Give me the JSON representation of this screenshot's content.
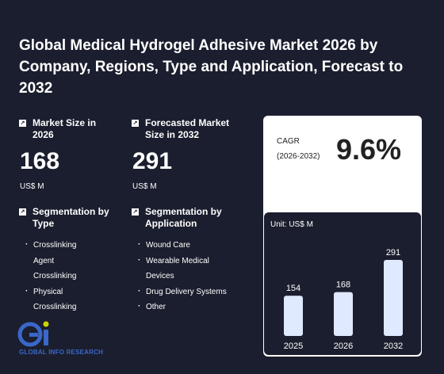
{
  "title": "Global Medical Hydrogel Adhesive Market 2026 by Company, Regions, Type and Application, Forecast to 2032",
  "market_size": {
    "label": "Market Size in 2026",
    "value": "168",
    "unit": "US$ M"
  },
  "forecast": {
    "label": "Forecasted Market Size in 2032",
    "value": "291",
    "unit": "US$ M"
  },
  "cagr": {
    "label": "CAGR",
    "period": "(2026-2032)",
    "value": "9.6%"
  },
  "seg_type": {
    "label": "Segmentation by Type",
    "items": [
      "Crosslinking Agent Crosslinking",
      "Physical Crosslinking"
    ]
  },
  "seg_app": {
    "label": "Segmentation by Application",
    "items": [
      "Wound Care",
      "Wearable Medical Devices",
      "Drug Delivery Systems",
      "Other"
    ]
  },
  "logo": {
    "text": "GLOBAL INFO RESEARCH"
  },
  "colors": {
    "background": "#1b1e2e",
    "bar": "#dfe9ff",
    "logo": "#3a67c9"
  },
  "chart_data": {
    "type": "bar",
    "unit_label": "Unit: US$ M",
    "categories": [
      "2025",
      "2026",
      "2032"
    ],
    "values": [
      154,
      168,
      291
    ],
    "ylim": [
      0,
      291
    ],
    "grid": false
  }
}
